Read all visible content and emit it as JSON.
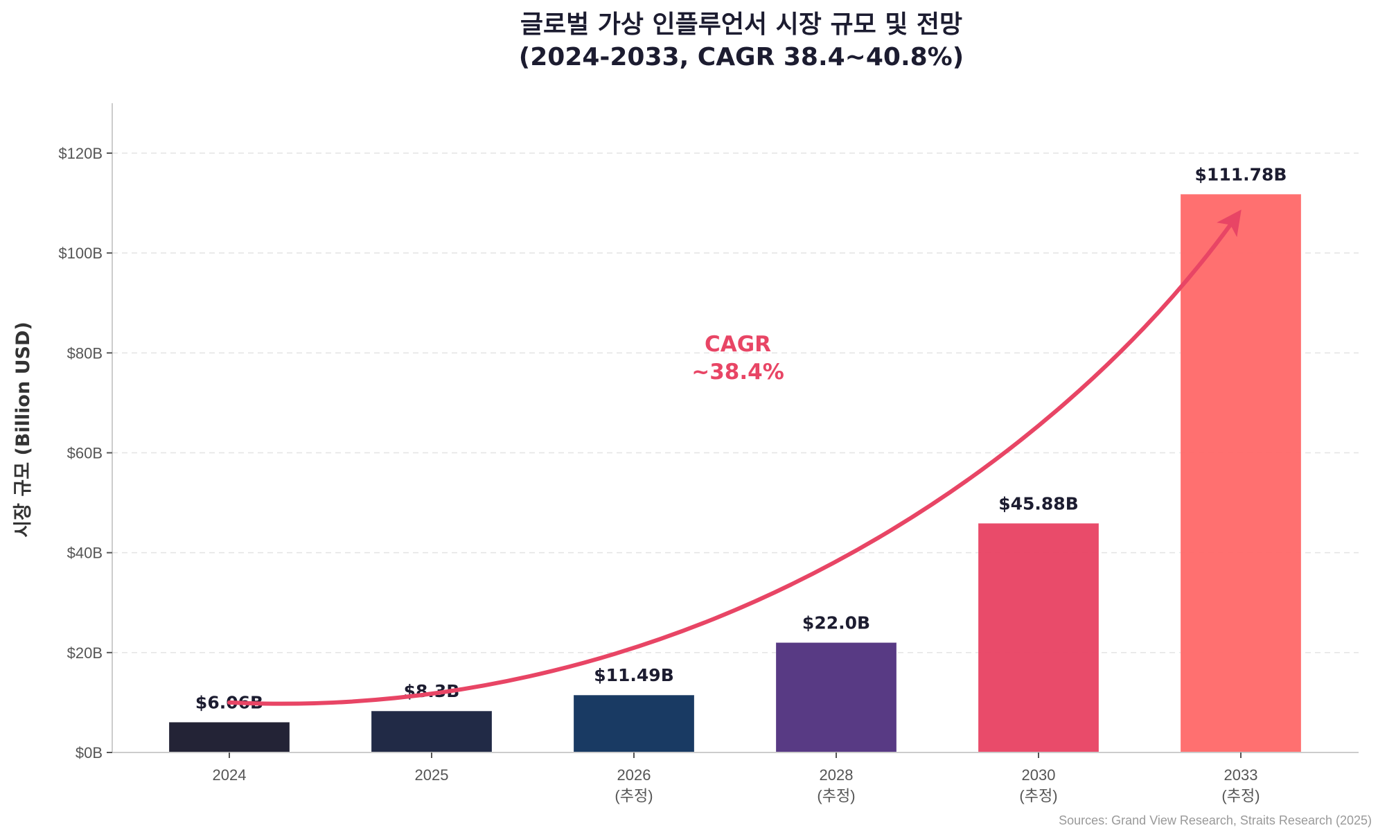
{
  "chart_data": {
    "type": "bar",
    "title": "글로벌 가상 인플루언서 시장 규모 및 전망",
    "subtitle": "(2024-2033, CAGR 38.4~40.8%)",
    "xlabel": "",
    "ylabel": "시장 규모 (Billion USD)",
    "ylim": [
      0,
      130
    ],
    "yticks": [
      0,
      20,
      40,
      60,
      80,
      100,
      120
    ],
    "ytick_labels": [
      "$0B",
      "$20B",
      "$40B",
      "$60B",
      "$80B",
      "$100B",
      "$120B"
    ],
    "grid": "horizontal-dashed",
    "categories": [
      "2024",
      "2025",
      "2026",
      "2028",
      "2030",
      "2033"
    ],
    "category_notes": [
      "",
      "",
      "(추정)",
      "(추정)",
      "(추정)",
      "(추정)"
    ],
    "values": [
      6.06,
      8.3,
      11.49,
      22.0,
      45.88,
      111.78
    ],
    "value_labels": [
      "$6.06B",
      "$8.3B",
      "$11.49B",
      "$22.0B",
      "$45.88B",
      "$111.78B"
    ],
    "bar_colors": [
      "#1c1c30",
      "#1a2340",
      "#12345e",
      "#533480",
      "#e84565",
      "#ff6b6b"
    ],
    "trend_arrow": {
      "color": "#e84565",
      "start_value": 10,
      "end_value": 107,
      "start_category": "2024",
      "end_category": "2033"
    },
    "annotations": [
      {
        "text_lines": [
          "CAGR",
          "~38.4%"
        ],
        "color": "#e84565"
      }
    ],
    "source": "Sources: Grand View Research, Straits Research (2025)"
  }
}
